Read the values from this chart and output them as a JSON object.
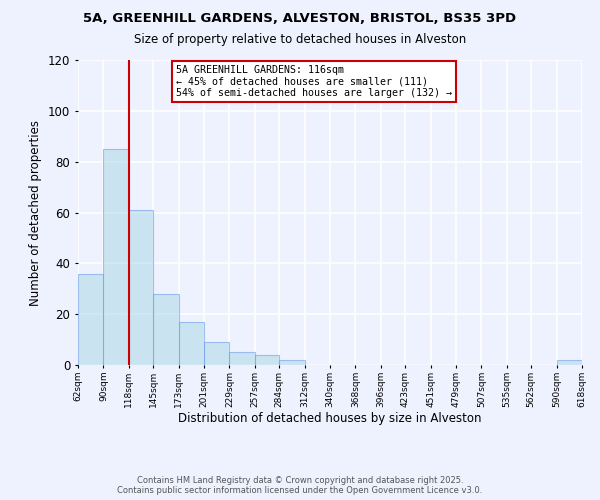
{
  "title_line1": "5A, GREENHILL GARDENS, ALVESTON, BRISTOL, BS35 3PD",
  "title_line2": "Size of property relative to detached houses in Alveston",
  "xlabel": "Distribution of detached houses by size in Alveston",
  "ylabel": "Number of detached properties",
  "bin_edges": [
    62,
    90,
    118,
    145,
    173,
    201,
    229,
    257,
    284,
    312,
    340,
    368,
    396,
    423,
    451,
    479,
    507,
    535,
    562,
    590,
    618
  ],
  "bar_heights": [
    36,
    85,
    61,
    28,
    17,
    9,
    5,
    4,
    2,
    0,
    0,
    0,
    0,
    0,
    0,
    0,
    0,
    0,
    0,
    2
  ],
  "bar_color": "#add8e6",
  "bar_edge_color": "#6495ED",
  "bar_alpha": 0.55,
  "vline_x": 118,
  "vline_color": "#cc0000",
  "annotation_line1": "5A GREENHILL GARDENS: 116sqm",
  "annotation_line2": "← 45% of detached houses are smaller (111)",
  "annotation_line3": "54% of semi-detached houses are larger (132) →",
  "ylim": [
    0,
    120
  ],
  "yticks": [
    0,
    20,
    40,
    60,
    80,
    100,
    120
  ],
  "tick_labels": [
    "62sqm",
    "90sqm",
    "118sqm",
    "145sqm",
    "173sqm",
    "201sqm",
    "229sqm",
    "257sqm",
    "284sqm",
    "312sqm",
    "340sqm",
    "368sqm",
    "396sqm",
    "423sqm",
    "451sqm",
    "479sqm",
    "507sqm",
    "535sqm",
    "562sqm",
    "590sqm",
    "618sqm"
  ],
  "bg_color": "#eef2ff",
  "grid_color": "#ffffff",
  "footer_line1": "Contains HM Land Registry data © Crown copyright and database right 2025.",
  "footer_line2": "Contains public sector information licensed under the Open Government Licence v3.0."
}
